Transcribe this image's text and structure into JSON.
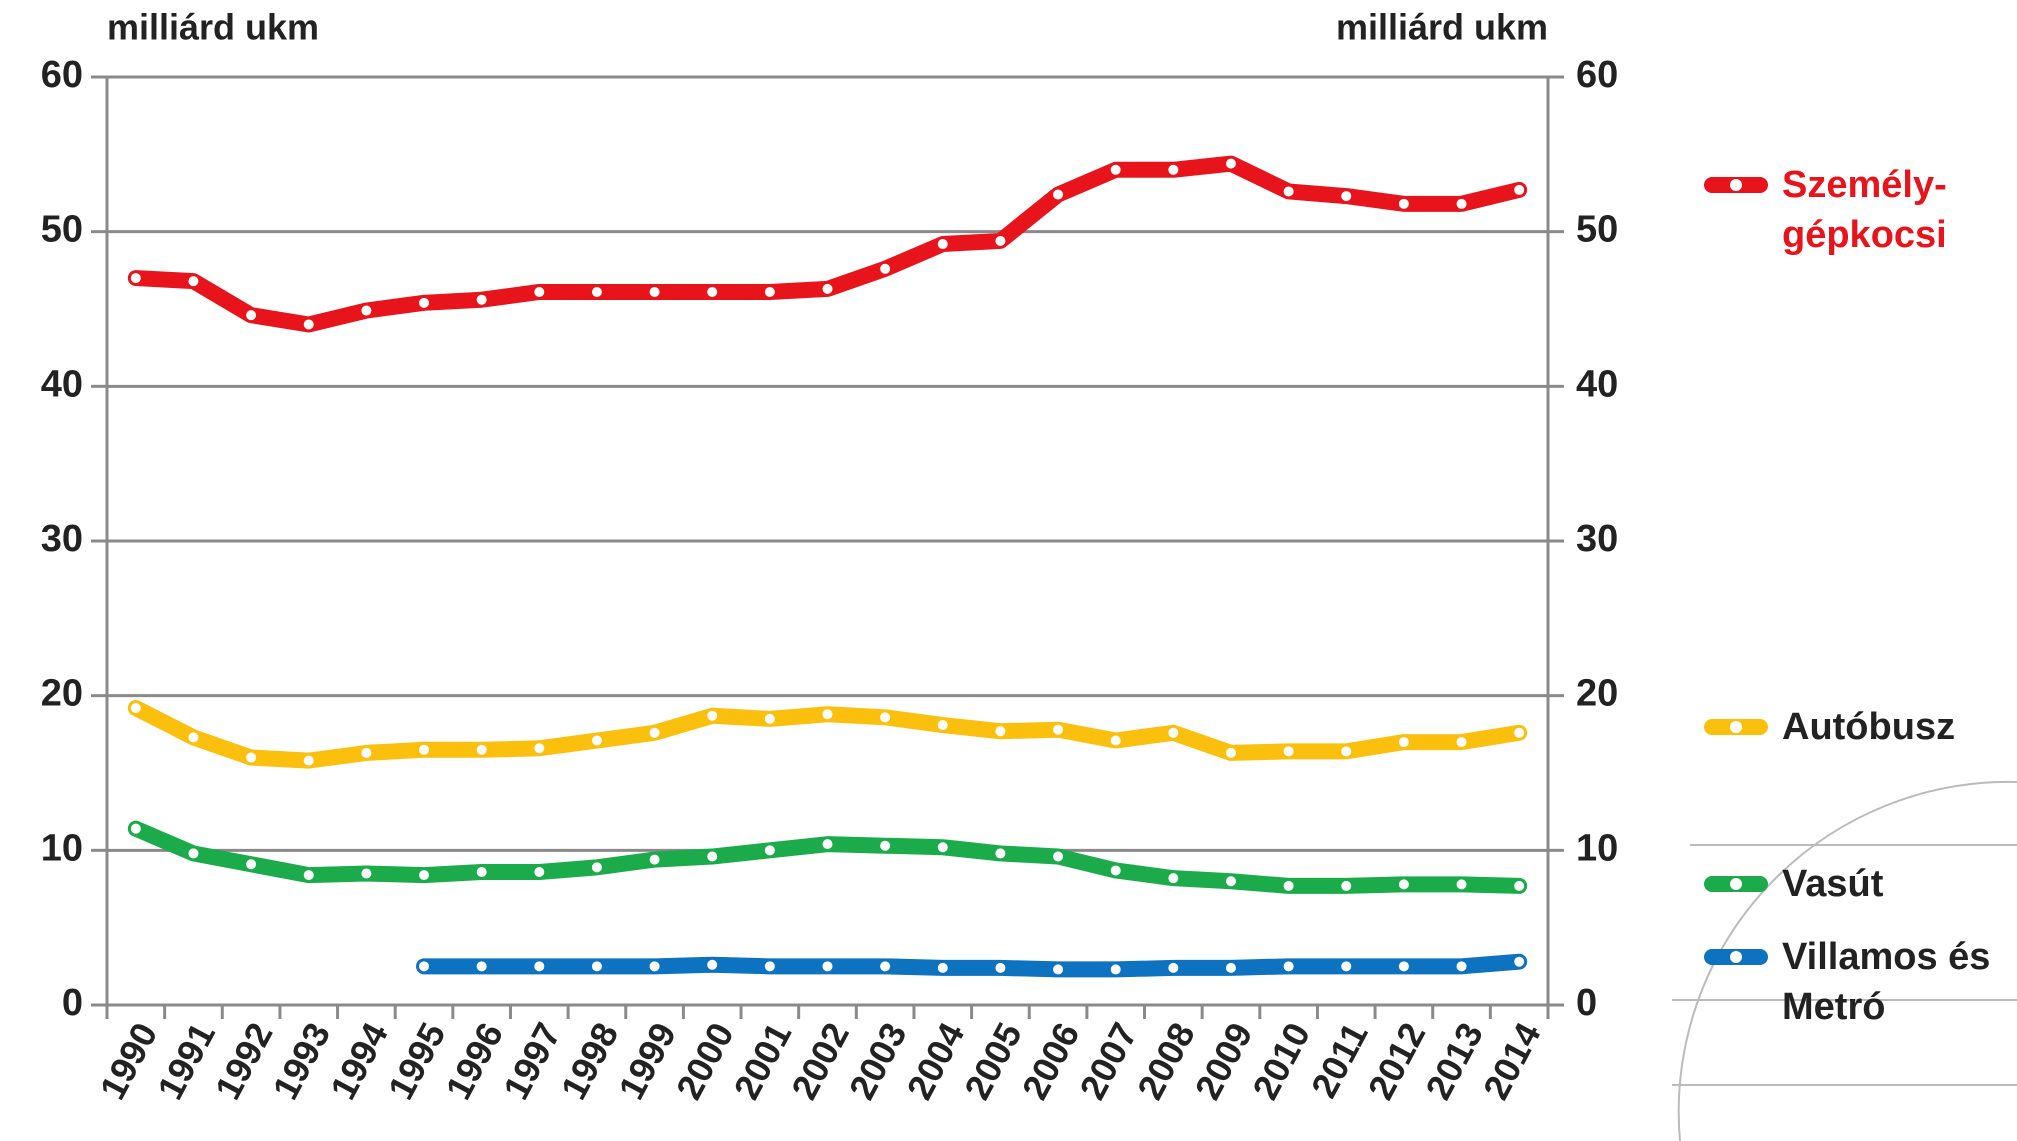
{
  "chart_data": {
    "type": "line",
    "y_label": "milliárd ukm",
    "y2_label": "milliárd ukm",
    "categories": [
      "1990",
      "1991",
      "1992",
      "1993",
      "1994",
      "1995",
      "1996",
      "1997",
      "1998",
      "1999",
      "2000",
      "2001",
      "2002",
      "2003",
      "2004",
      "2005",
      "2006",
      "2007",
      "2008",
      "2009",
      "2010",
      "2011",
      "2012",
      "2013",
      "2014"
    ],
    "series": [
      {
        "name": "Személy-gépkocsi",
        "color": "#e8141c",
        "values": [
          47.0,
          46.8,
          44.6,
          44.0,
          44.9,
          45.4,
          45.6,
          46.1,
          46.1,
          46.1,
          46.1,
          46.1,
          46.3,
          47.6,
          49.2,
          49.4,
          52.4,
          54.0,
          54.0,
          54.4,
          52.6,
          52.3,
          51.8,
          51.8,
          52.7
        ]
      },
      {
        "name": "Autóbusz",
        "color": "#fbbf0e",
        "values": [
          19.2,
          17.3,
          16.0,
          15.8,
          16.3,
          16.5,
          16.5,
          16.6,
          17.1,
          17.6,
          18.7,
          18.5,
          18.8,
          18.6,
          18.1,
          17.7,
          17.8,
          17.1,
          17.6,
          16.3,
          16.4,
          16.4,
          17.0,
          17.0,
          17.6
        ]
      },
      {
        "name": "Vasút",
        "color": "#1bab4a",
        "values": [
          11.4,
          9.8,
          9.1,
          8.4,
          8.5,
          8.4,
          8.6,
          8.6,
          8.9,
          9.4,
          9.6,
          10.0,
          10.4,
          10.3,
          10.2,
          9.8,
          9.6,
          8.7,
          8.2,
          8.0,
          7.7,
          7.7,
          7.8,
          7.8,
          7.7
        ]
      },
      {
        "name": "Villamos és Metró",
        "color": "#0d72c0",
        "values": [
          null,
          null,
          null,
          null,
          null,
          2.5,
          2.5,
          2.5,
          2.5,
          2.5,
          2.6,
          2.5,
          2.5,
          2.5,
          2.4,
          2.4,
          2.3,
          2.3,
          2.4,
          2.4,
          2.5,
          2.5,
          2.5,
          2.5,
          2.8
        ]
      }
    ],
    "ylim": [
      0,
      60
    ],
    "yticks": [
      0,
      10,
      20,
      30,
      40,
      50,
      60
    ],
    "y2lim": [
      0,
      60
    ],
    "y2ticks": [
      0,
      10,
      20,
      30,
      40,
      50,
      60
    ],
    "grid": true,
    "legend": "right"
  }
}
